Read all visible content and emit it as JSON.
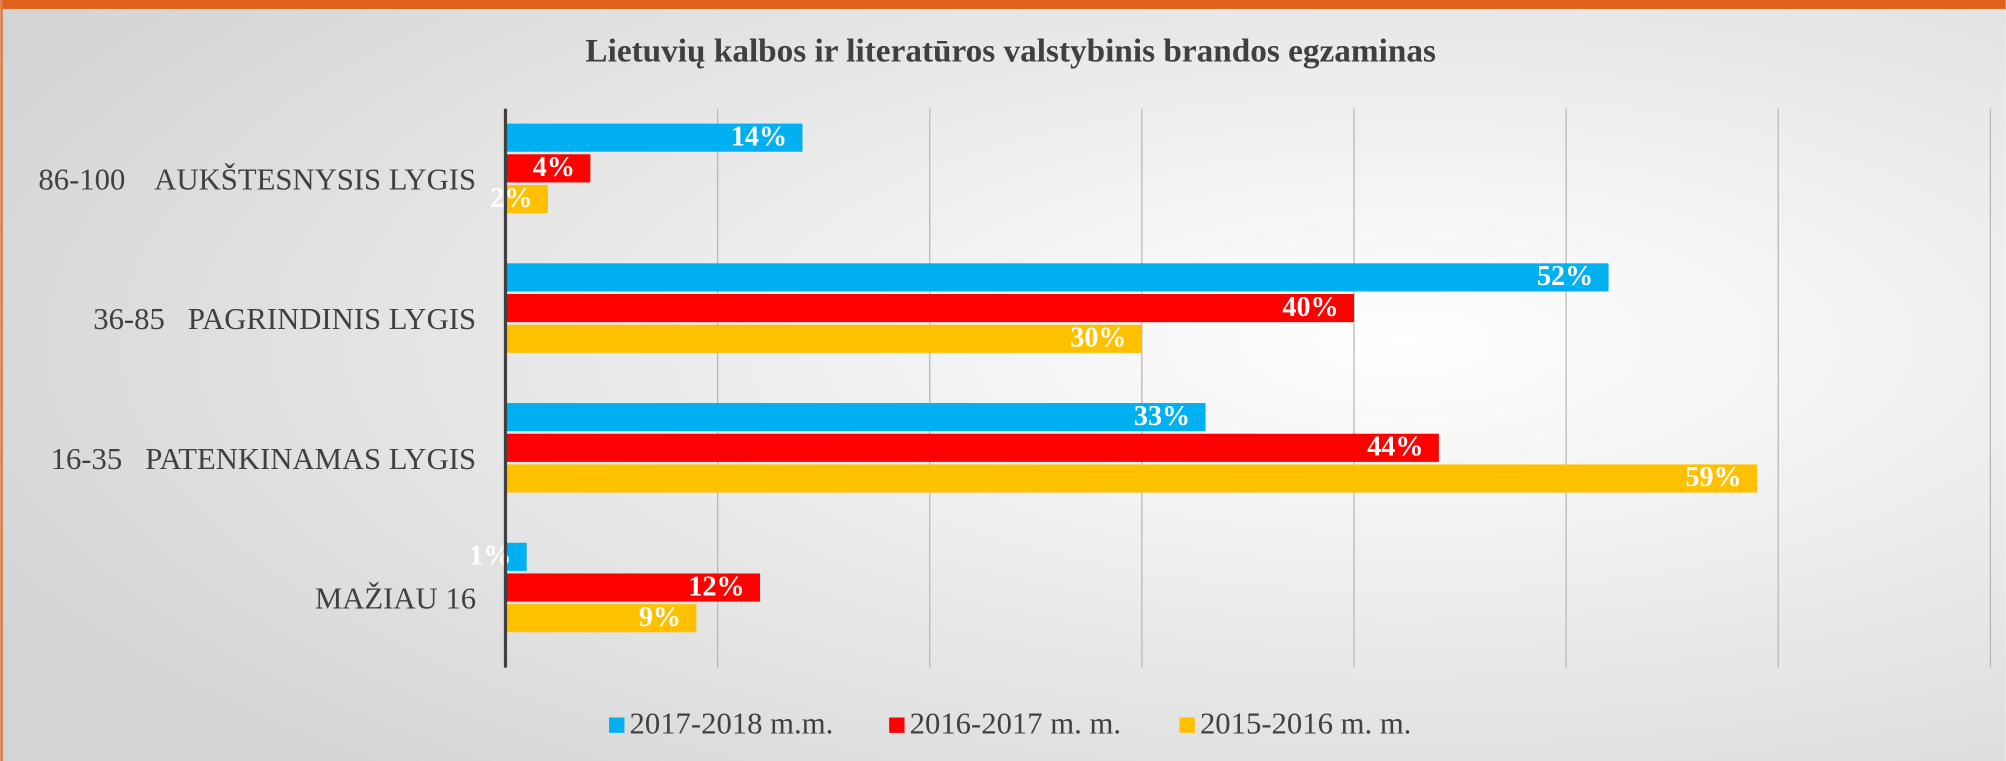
{
  "chart_data": {
    "type": "bar",
    "orientation": "horizontal",
    "title": "Lietuvių kalbos ir literatūros valstybinis brandos egzaminas",
    "categories": [
      "86-100    AUKŠTESNYSIS LYGIS",
      "36-85   PAGRINDINIS LYGIS",
      "16-35   PATENKINAMAS LYGIS",
      "MAŽIAU 16"
    ],
    "series": [
      {
        "name": "2017-2018 m.m.",
        "color": "#00b0f0",
        "values": [
          14,
          52,
          33,
          1
        ],
        "value_labels": [
          "14%",
          "52%",
          "33%",
          "1%"
        ]
      },
      {
        "name": "2016-2017 m. m.",
        "color": "#ff0000",
        "values": [
          4,
          40,
          44,
          12
        ],
        "value_labels": [
          "4%",
          "40%",
          "44%",
          "12%"
        ]
      },
      {
        "name": "2015-2016 m. m.",
        "color": "#ffc000",
        "values": [
          2,
          30,
          59,
          9
        ],
        "value_labels": [
          "2%",
          "30%",
          "59%",
          "9%"
        ]
      }
    ],
    "xlim": [
      0,
      70
    ],
    "xticks": [
      0,
      10,
      20,
      30,
      40,
      50,
      60,
      70
    ],
    "grid": true,
    "legend": "bottom"
  }
}
